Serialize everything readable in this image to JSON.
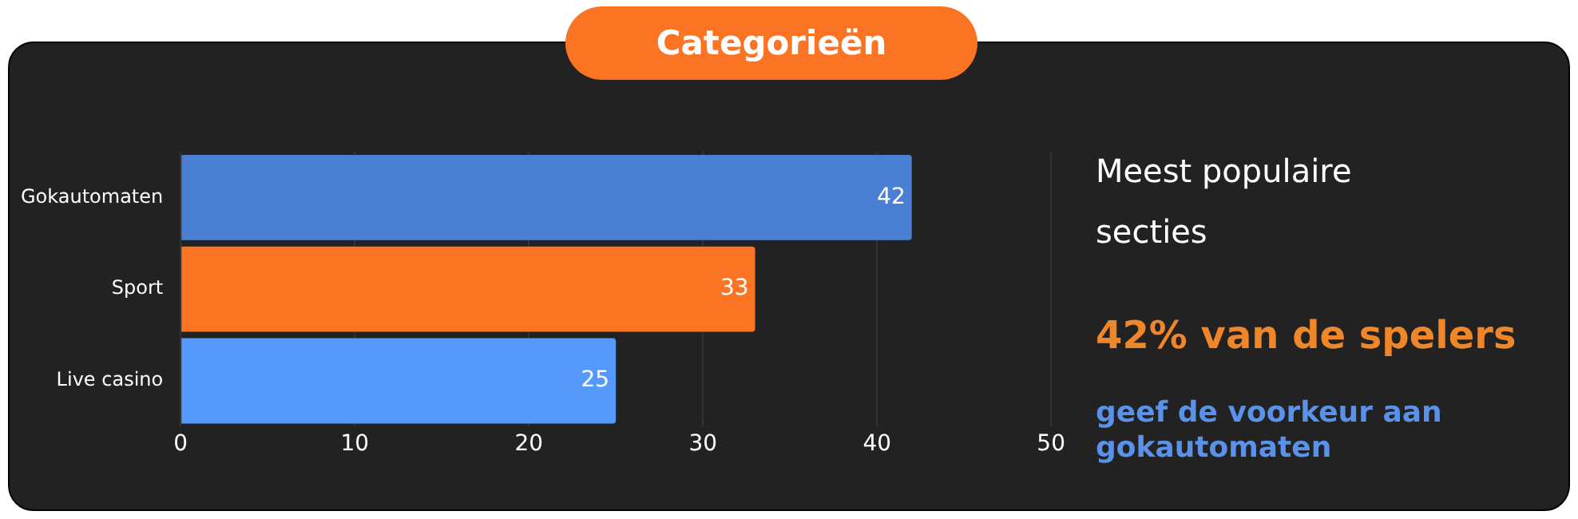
{
  "chart_data": {
    "type": "bar",
    "orientation": "horizontal",
    "title": "Categorieën",
    "categories": [
      "Gokautomaten",
      "Sport",
      "Live casino"
    ],
    "values": [
      42,
      33,
      25
    ],
    "colors": [
      "#4a7fd4",
      "#fb7424",
      "#559afb"
    ],
    "xlim": [
      0,
      50
    ],
    "xticks": [
      0,
      10,
      20,
      30,
      40,
      50
    ],
    "grid": "x",
    "legend": false,
    "data_labels": true,
    "annotations": [
      "Meest populaire secties",
      "42% van de spelers",
      "geef de voorkeur aan gokautomaten"
    ]
  }
}
